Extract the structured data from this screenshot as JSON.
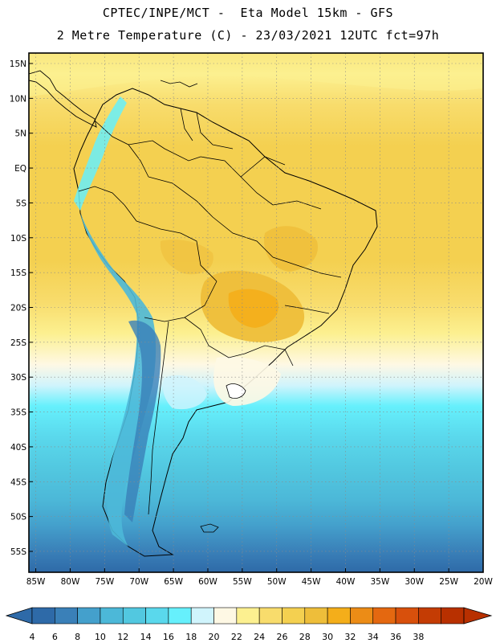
{
  "title": {
    "line1": "CPTEC/INPE/MCT -  Eta Model 15km - GFS",
    "line2": "2 Metre Temperature (C) - 23/03/2021 12UTC fct=97h"
  },
  "map": {
    "lat_ticks": [
      "15N",
      "10N",
      "5N",
      "EQ",
      "5S",
      "10S",
      "15S",
      "20S",
      "25S",
      "30S",
      "35S",
      "40S",
      "45S",
      "50S",
      "55S"
    ],
    "lon_ticks": [
      "85W",
      "80W",
      "75W",
      "70W",
      "65W",
      "60W",
      "55W",
      "50W",
      "45W",
      "40W",
      "35W",
      "30W",
      "25W",
      "20W"
    ],
    "lat_values": [
      15,
      10,
      5,
      0,
      -5,
      -10,
      -15,
      -20,
      -25,
      -30,
      -35,
      -40,
      -45,
      -50,
      -55
    ],
    "lon_values": [
      -85,
      -80,
      -75,
      -70,
      -65,
      -60,
      -55,
      -50,
      -45,
      -40,
      -35,
      -30,
      -25,
      -20
    ],
    "extent": {
      "lon_min": -86,
      "lon_max": -20,
      "lat_min": -58,
      "lat_max": 16.5
    }
  },
  "colorbar": {
    "labels": [
      "4",
      "6",
      "8",
      "10",
      "12",
      "14",
      "16",
      "18",
      "20",
      "22",
      "24",
      "26",
      "28",
      "30",
      "32",
      "34",
      "36",
      "38"
    ],
    "colors": [
      "#2e6aa8",
      "#3a80b8",
      "#44a0cc",
      "#4cb8d8",
      "#52c8e0",
      "#5ad8ec",
      "#66f0fc",
      "#d0f4fc",
      "#fef8e4",
      "#fcf090",
      "#f8dc6c",
      "#f4d050",
      "#eebe3a",
      "#f4ae1a",
      "#ec8c16",
      "#e46810",
      "#d8500c",
      "#c43c04",
      "#b83000"
    ]
  }
}
